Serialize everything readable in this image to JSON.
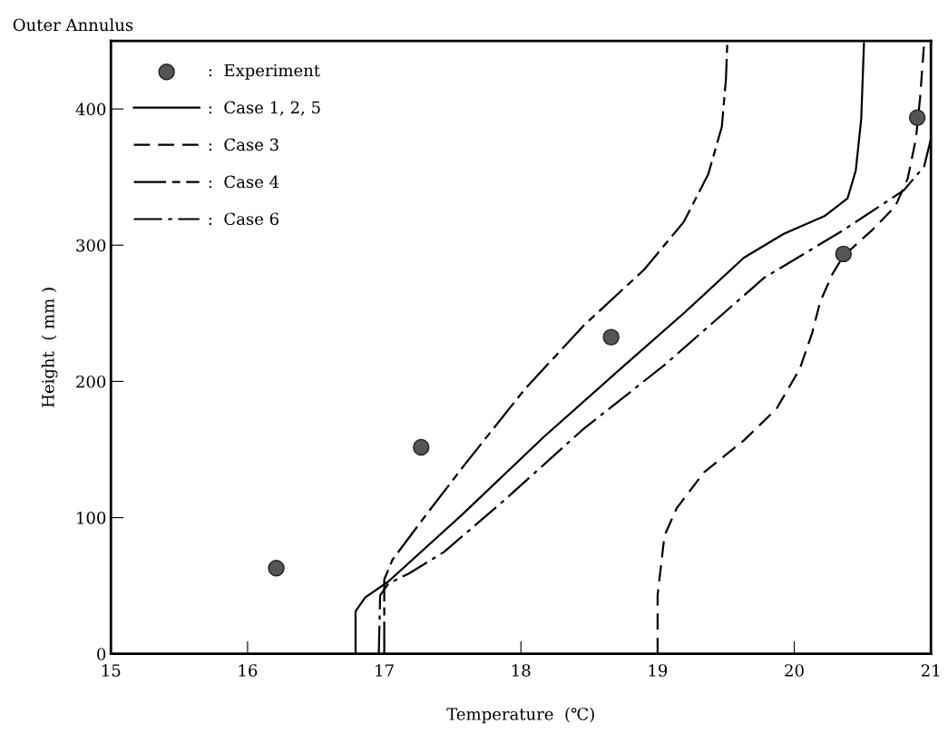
{
  "chart_data": {
    "type": "line",
    "title": "Outer Annulus",
    "xlabel": "Temperature  (℃)",
    "ylabel": "Height  ( mm )",
    "xlim": [
      15,
      21
    ],
    "ylim": [
      0,
      450
    ],
    "xticks": [
      15,
      16,
      17,
      18,
      19,
      20,
      21
    ],
    "yticks": [
      0,
      100,
      200,
      300,
      400
    ],
    "grid": false,
    "legend": "top left",
    "series": [
      {
        "name": ":  Experiment",
        "type": "scatter",
        "marker": "circle",
        "color": "#555555",
        "x": [
          16.21,
          17.27,
          18.66,
          20.36,
          20.9
        ],
        "values": [
          62.9,
          151.7,
          232.5,
          293.6,
          393.6
        ]
      },
      {
        "name": ":  Case 1, 2, 5",
        "line_style": "solid",
        "color": "#000000",
        "x": [
          16.79,
          16.79,
          16.86,
          17.03,
          17.59,
          18.17,
          18.76,
          19.19,
          19.63,
          19.92,
          20.22,
          20.39,
          20.45,
          20.49,
          20.51
        ],
        "values": [
          0,
          31.2,
          41.4,
          53.1,
          104.1,
          159.5,
          212.0,
          249.9,
          290.7,
          308.2,
          321.3,
          334.4,
          354.8,
          392.7,
          448.1
        ]
      },
      {
        "name": ":  Case 3",
        "line_style": "dashed",
        "color": "#000000",
        "x": [
          19.0,
          19.0,
          19.05,
          19.14,
          19.34,
          19.63,
          19.87,
          20.04,
          20.13,
          20.19,
          20.28,
          20.36,
          20.57,
          20.74,
          20.83,
          20.89,
          20.92,
          20.95
        ],
        "values": [
          0,
          42.9,
          86.6,
          107.0,
          133.3,
          156.6,
          179.9,
          209.1,
          235.3,
          258.6,
          279.0,
          292.1,
          311.1,
          328.6,
          349.0,
          378.1,
          407.3,
          448.1
        ]
      },
      {
        "name": ":  Case 4",
        "line_style": "longdash",
        "color": "#000000",
        "x": [
          17.0,
          17.0,
          17.06,
          17.3,
          17.59,
          18.03,
          18.46,
          18.9,
          19.19,
          19.37,
          19.47,
          19.5,
          19.51
        ],
        "values": [
          0,
          54.6,
          69.1,
          101.2,
          139.1,
          194.5,
          241.1,
          281.9,
          316.9,
          351.9,
          386.9,
          421.9,
          448.1
        ]
      },
      {
        "name": ":  Case 6",
        "line_style": "dashdot",
        "color": "#000000",
        "x": [
          16.96,
          16.97,
          17.03,
          17.18,
          17.44,
          17.88,
          18.46,
          19.05,
          19.78,
          20.36,
          20.8,
          20.95,
          21.0
        ],
        "values": [
          0,
          42.9,
          51.6,
          58.9,
          75.0,
          112.9,
          165.3,
          212.0,
          276.1,
          311.1,
          340.2,
          357.7,
          378.1
        ]
      }
    ]
  }
}
